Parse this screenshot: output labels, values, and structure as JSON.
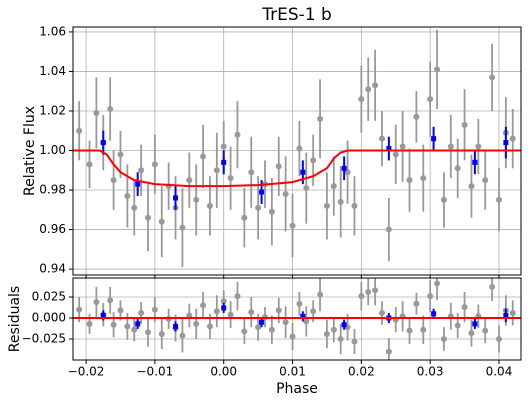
{
  "chart_data": [
    {
      "type": "errorbar",
      "title": "TrES-1 b",
      "ylabel": "Relative Flux",
      "sharex": true,
      "grid": true,
      "ylim": [
        0.937,
        1.0625
      ],
      "yticks": [
        0.94,
        0.96,
        0.98,
        {
          "value": 1,
          "label": "1.00"
        },
        1.02,
        1.04,
        1.06
      ],
      "points": {
        "color": "#999999",
        "x": [
          -0.021,
          -0.0195,
          -0.0185,
          -0.0175,
          -0.0165,
          -0.016,
          -0.015,
          -0.014,
          -0.013,
          -0.012,
          -0.011,
          -0.01,
          -0.009,
          -0.008,
          -0.007,
          -0.006,
          -0.005,
          -0.004,
          -0.003,
          -0.002,
          -0.001,
          0,
          0.001,
          0.002,
          0.003,
          0.004,
          0.005,
          0.006,
          0.007,
          0.008,
          0.009,
          0.01,
          0.011,
          0.012,
          0.013,
          0.014,
          0.015,
          0.016,
          0.017,
          0.018,
          0.019,
          0.02,
          0.021,
          0.022,
          0.023,
          0.024,
          0.025,
          0.026,
          0.027,
          0.028,
          0.029,
          0.03,
          0.031,
          0.032,
          0.033,
          0.034,
          0.035,
          0.036,
          0.037,
          0.038,
          0.039,
          0.04,
          0.041,
          0.042
        ],
        "values": [
          1.01,
          0.993,
          1.019,
          1.004,
          1.021,
          0.985,
          0.998,
          0.977,
          0.971,
          0.99,
          0.966,
          0.993,
          0.964,
          0.982,
          0.971,
          0.961,
          0.985,
          0.975,
          0.997,
          0.972,
          0.99,
          1.002,
          0.986,
          1.008,
          0.966,
          0.989,
          0.971,
          0.983,
          0.969,
          0.992,
          0.978,
          0.962,
          1.001,
          0.981,
          0.995,
          1.016,
          0.972,
          0.982,
          0.974,
          0.989,
          0.972,
          1.026,
          1.031,
          1.033,
          1.006,
          0.96,
          0.998,
          1.002,
          0.985,
          1.017,
          0.986,
          1.026,
          1.041,
          0.975,
          1.002,
          0.991,
          1.013,
          0.982,
          1.002,
          0.985,
          1.037,
          0.975,
          1.009,
          1.006
        ],
        "errors": [
          0.015,
          0.012,
          0.018,
          0.014,
          0.016,
          0.015,
          0.012,
          0.016,
          0.014,
          0.013,
          0.017,
          0.015,
          0.018,
          0.012,
          0.016,
          0.02,
          0.014,
          0.018,
          0.016,
          0.015,
          0.019,
          0.013,
          0.016,
          0.017,
          0.015,
          0.018,
          0.016,
          0.012,
          0.017,
          0.015,
          0.019,
          0.016,
          0.014,
          0.018,
          0.013,
          0.02,
          0.017,
          0.015,
          0.018,
          0.016,
          0.015,
          0.017,
          0.016,
          0.018,
          0.014,
          0.016,
          0.015,
          0.018,
          0.016,
          0.013,
          0.017,
          0.019,
          0.02,
          0.014,
          0.016,
          0.015,
          0.018,
          0.016,
          0.014,
          0.015,
          0.017,
          0.016,
          0.018,
          0.015
        ]
      },
      "binned": {
        "color": "#0000ff",
        "x": [
          -0.0175,
          -0.0125,
          -0.007,
          0,
          0.0055,
          0.0115,
          0.0175,
          0.024,
          0.0305,
          0.0365,
          0.041
        ],
        "values": [
          1.004,
          0.983,
          0.976,
          0.994,
          0.979,
          0.989,
          0.991,
          1.001,
          1.006,
          0.994,
          1.004
        ],
        "errors": [
          0.006,
          0.006,
          0.006,
          0.006,
          0.006,
          0.006,
          0.006,
          0.006,
          0.006,
          0.006,
          0.008
        ]
      },
      "model": {
        "color": "#ff0000",
        "x": [
          -0.0219,
          -0.018,
          -0.017,
          -0.016,
          -0.015,
          -0.013,
          -0.01,
          -0.005,
          0,
          0.005,
          0.01,
          0.013,
          0.015,
          0.016,
          0.017,
          0.018,
          0.0432
        ],
        "values": [
          1,
          1,
          0.998,
          0.993,
          0.989,
          0.985,
          0.983,
          0.982,
          0.982,
          0.9825,
          0.984,
          0.987,
          0.991,
          0.996,
          0.999,
          1,
          1
        ]
      }
    },
    {
      "type": "errorbar",
      "ylabel": "Residuals",
      "xlabel": "Phase",
      "grid": true,
      "xlim": [
        -0.0219,
        0.0432
      ],
      "xticks": [
        {
          "value": -0.02,
          "label": "−0.02"
        },
        {
          "value": -0.01,
          "label": "−0.01"
        },
        {
          "value": 0,
          "label": "0.00"
        },
        0.01,
        0.02,
        0.03,
        0.04
      ],
      "ylim": [
        -0.05,
        0.0476
      ],
      "yticks": [
        {
          "value": -0.025,
          "label": "−0.025"
        },
        {
          "value": 0,
          "label": "0.000"
        },
        0.025
      ],
      "points": {
        "color": "#999999",
        "x": [
          -0.021,
          -0.0195,
          -0.0185,
          -0.0175,
          -0.0165,
          -0.016,
          -0.015,
          -0.014,
          -0.013,
          -0.012,
          -0.011,
          -0.01,
          -0.009,
          -0.008,
          -0.007,
          -0.006,
          -0.005,
          -0.004,
          -0.003,
          -0.002,
          -0.001,
          0,
          0.001,
          0.002,
          0.003,
          0.004,
          0.005,
          0.006,
          0.007,
          0.008,
          0.009,
          0.01,
          0.011,
          0.012,
          0.013,
          0.014,
          0.015,
          0.016,
          0.017,
          0.018,
          0.019,
          0.02,
          0.021,
          0.022,
          0.023,
          0.024,
          0.025,
          0.026,
          0.027,
          0.028,
          0.029,
          0.03,
          0.031,
          0.032,
          0.033,
          0.034,
          0.035,
          0.036,
          0.037,
          0.038,
          0.039,
          0.04,
          0.041,
          0.042
        ],
        "values": [
          0.01,
          -0.007,
          0.019,
          0.004,
          0.021,
          -0.008,
          0.009,
          -0.01,
          -0.014,
          0.006,
          -0.017,
          0.01,
          -0.019,
          -0.001,
          -0.012,
          -0.021,
          0.003,
          -0.007,
          0.015,
          -0.01,
          0.008,
          0.02,
          0.004,
          0.026,
          -0.016,
          0.007,
          -0.011,
          0.001,
          -0.014,
          0.009,
          -0.005,
          -0.022,
          0.017,
          -0.004,
          0.008,
          0.028,
          -0.019,
          -0.014,
          -0.025,
          -0.011,
          -0.028,
          0.026,
          0.031,
          0.033,
          0.006,
          -0.04,
          -0.002,
          0.002,
          -0.015,
          0.017,
          -0.014,
          0.026,
          0.041,
          -0.025,
          0.002,
          -0.009,
          0.013,
          -0.018,
          0.002,
          -0.015,
          0.037,
          -0.025,
          0.009,
          0.006
        ],
        "errors": [
          0.015,
          0.012,
          0.018,
          0.014,
          0.016,
          0.015,
          0.012,
          0.016,
          0.014,
          0.013,
          0.017,
          0.015,
          0.018,
          0.012,
          0.016,
          0.02,
          0.014,
          0.018,
          0.016,
          0.015,
          0.019,
          0.013,
          0.016,
          0.017,
          0.015,
          0.018,
          0.016,
          0.012,
          0.017,
          0.015,
          0.019,
          0.016,
          0.014,
          0.018,
          0.013,
          0.02,
          0.017,
          0.015,
          0.018,
          0.016,
          0.015,
          0.017,
          0.016,
          0.018,
          0.014,
          0.016,
          0.015,
          0.018,
          0.016,
          0.013,
          0.017,
          0.019,
          0.02,
          0.014,
          0.016,
          0.015,
          0.018,
          0.016,
          0.014,
          0.015,
          0.017,
          0.016,
          0.018,
          0.015
        ]
      },
      "binned": {
        "color": "#0000ff",
        "x": [
          -0.0175,
          -0.0125,
          -0.007,
          0,
          0.0055,
          0.0115,
          0.0175,
          0.024,
          0.0305,
          0.0365,
          0.041
        ],
        "values": [
          0.003,
          -0.007,
          -0.01,
          0.012,
          -0.005,
          0.002,
          -0.008,
          0,
          0.005,
          -0.007,
          0.003
        ],
        "errors": [
          0.006,
          0.006,
          0.006,
          0.006,
          0.006,
          0.006,
          0.006,
          0.006,
          0.006,
          0.006,
          0.008
        ]
      },
      "model": {
        "color": "#ff0000",
        "x": [
          -0.0219,
          0.0432
        ],
        "values": [
          0,
          0
        ]
      }
    }
  ]
}
